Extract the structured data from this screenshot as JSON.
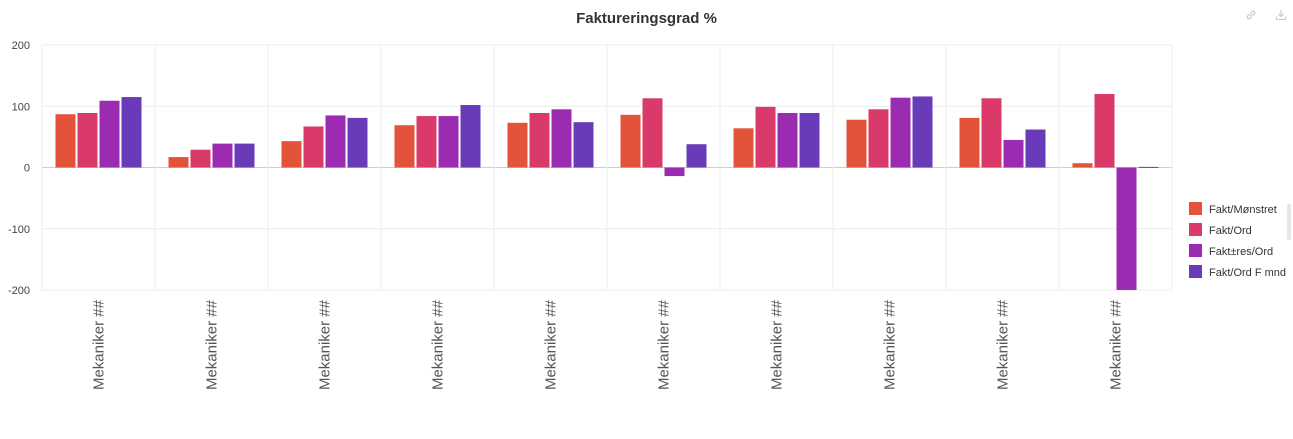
{
  "chart_data": {
    "type": "bar",
    "title": "Faktureringsgrad %",
    "xlabel": "",
    "ylabel": "",
    "ylim": [
      -200,
      200
    ],
    "yticks": [
      200,
      100,
      0,
      -100,
      -200
    ],
    "categories": [
      "Mekaniker ##",
      "Mekaniker ##",
      "Mekaniker ##",
      "Mekaniker ##",
      "Mekaniker ##",
      "Mekaniker ##",
      "Mekaniker ##",
      "Mekaniker ##",
      "Mekaniker ##",
      "Mekaniker ##"
    ],
    "series": [
      {
        "name": "Fakt/Mønstret",
        "color": "#e2533a",
        "values": [
          87,
          17,
          43,
          69,
          73,
          86,
          64,
          78,
          81,
          7
        ]
      },
      {
        "name": "Fakt/Ord",
        "color": "#d93a6a",
        "values": [
          89,
          29,
          67,
          84,
          89,
          113,
          99,
          95,
          113,
          120
        ]
      },
      {
        "name": "Fakt±res/Ord",
        "color": "#9b2bb0",
        "values": [
          109,
          39,
          85,
          84,
          95,
          -14,
          89,
          114,
          45,
          -200
        ]
      },
      {
        "name": "Fakt/Ord F mnd",
        "color": "#6a3bb8",
        "values": [
          115,
          39,
          81,
          102,
          74,
          38,
          89,
          116,
          62,
          1
        ]
      }
    ],
    "legend_position": "right",
    "grid": true
  },
  "toolbar": {
    "link_icon": "link-icon",
    "download_icon": "download-icon"
  }
}
